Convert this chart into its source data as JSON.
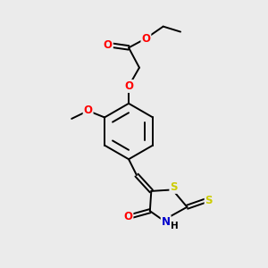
{
  "bg_color": "#ebebeb",
  "atom_colors": {
    "C": "#000000",
    "O": "#ff0000",
    "N": "#0000cc",
    "S": "#cccc00",
    "H": "#000000"
  },
  "bond_color": "#000000",
  "bond_width": 1.4,
  "font_size": 8.5,
  "fig_size": [
    3.0,
    3.0
  ],
  "dpi": 100
}
